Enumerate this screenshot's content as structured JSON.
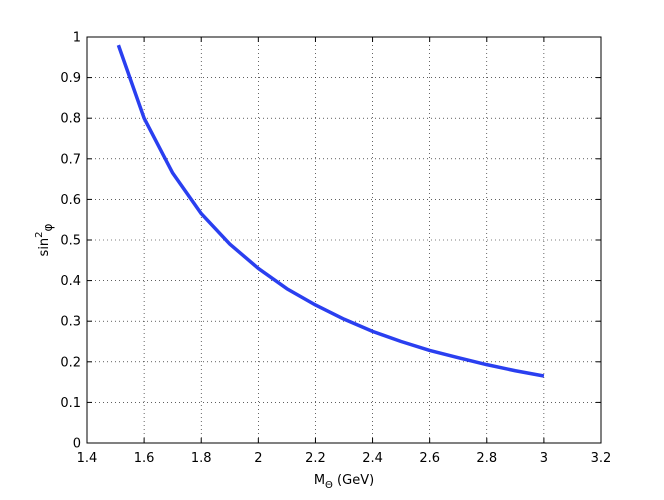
{
  "chart_data": {
    "type": "line",
    "x_label": {
      "main": "M",
      "sub": "Θ",
      "rest": " (GeV)"
    },
    "y_label": {
      "main": "sin",
      "sup": "2",
      "sub": "φ"
    },
    "x": [
      1.51,
      1.6,
      1.7,
      1.8,
      1.9,
      2.0,
      2.1,
      2.2,
      2.3,
      2.4,
      2.5,
      2.6,
      2.7,
      2.8,
      2.9,
      3.0
    ],
    "series": [
      {
        "color": "#2a3ff0",
        "values": [
          0.98,
          0.8,
          0.665,
          0.565,
          0.49,
          0.43,
          0.38,
          0.34,
          0.305,
          0.275,
          0.25,
          0.228,
          0.21,
          0.193,
          0.178,
          0.165
        ]
      }
    ],
    "xlim": [
      1.4,
      3.2
    ],
    "xticks": [
      1.4,
      1.6,
      1.8,
      2,
      2.2,
      2.4,
      2.6,
      2.8,
      3,
      3.2
    ],
    "ylim": [
      0,
      1
    ],
    "yticks": [
      0,
      0.1,
      0.2,
      0.3,
      0.4,
      0.5,
      0.6,
      0.7,
      0.8,
      0.9,
      1
    ],
    "grid": true
  }
}
